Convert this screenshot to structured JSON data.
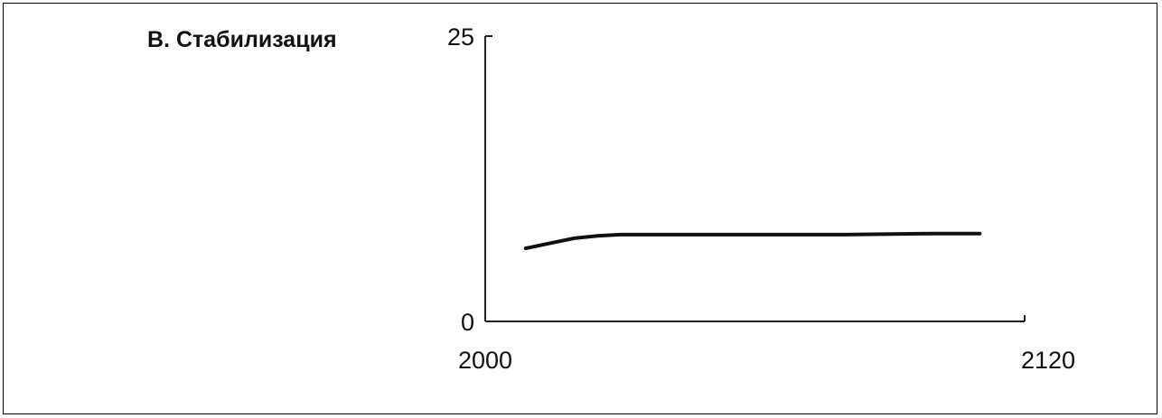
{
  "chart_data": {
    "type": "line",
    "title": "В. Стабилизация",
    "xlabel": "",
    "ylabel": "",
    "xlim": [
      2000,
      2120
    ],
    "ylim": [
      0,
      25
    ],
    "x_tick_labels": [
      "2000",
      "2120"
    ],
    "y_tick_labels": [
      "0",
      "25"
    ],
    "grid": false,
    "series": [
      {
        "color": "#111111",
        "x": [
          2009,
          2015,
          2020,
          2025,
          2030,
          2040,
          2050,
          2060,
          2080,
          2100,
          2110
        ],
        "y": [
          6.4,
          6.9,
          7.3,
          7.5,
          7.6,
          7.6,
          7.6,
          7.6,
          7.6,
          7.7,
          7.7
        ]
      }
    ]
  }
}
